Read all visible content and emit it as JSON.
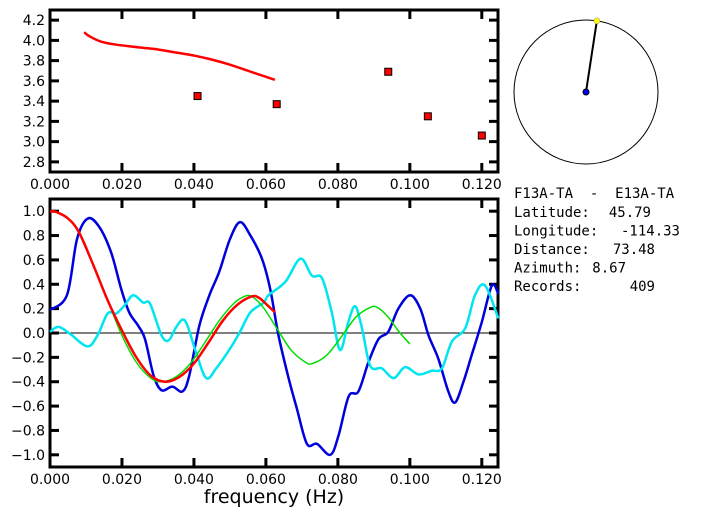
{
  "chart_data": [
    {
      "type": "scatter",
      "title": "",
      "xlabel": "",
      "ylabel": "",
      "xlim": [
        0,
        0.1245
      ],
      "ylim": [
        2.7,
        4.3
      ],
      "xticks": [
        "0.000",
        "0.020",
        "0.040",
        "0.060",
        "0.080",
        "0.100",
        "0.120"
      ],
      "yticks": [
        "2.8",
        "3.0",
        "3.2",
        "3.4",
        "3.6",
        "3.8",
        "4.0",
        "4.2"
      ],
      "series": [
        {
          "name": "curve",
          "color": "#ff0000",
          "style": "line",
          "x": [
            0.0095,
            0.011,
            0.014,
            0.018,
            0.025,
            0.03,
            0.035,
            0.04,
            0.045,
            0.05,
            0.055,
            0.06,
            0.0625
          ],
          "y": [
            4.08,
            4.04,
            3.99,
            3.96,
            3.93,
            3.91,
            3.88,
            3.85,
            3.81,
            3.76,
            3.7,
            3.64,
            3.61
          ]
        },
        {
          "name": "measurements",
          "color": "#ff0000",
          "style": "square",
          "x": [
            0.041,
            0.063,
            0.094,
            0.105,
            0.12
          ],
          "y": [
            3.45,
            3.37,
            3.69,
            3.25,
            3.06
          ]
        }
      ]
    },
    {
      "type": "line",
      "title": "",
      "xlabel": "frequency (Hz)",
      "ylabel": "",
      "xlim": [
        0,
        0.1245
      ],
      "ylim": [
        -1.1,
        1.1
      ],
      "xticks": [
        "0.000",
        "0.020",
        "0.040",
        "0.060",
        "0.080",
        "0.100",
        "0.120"
      ],
      "yticks": [
        "-1.0",
        "-0.8",
        "-0.6",
        "-0.4",
        "-0.2",
        "0.0",
        "0.2",
        "0.4",
        "0.6",
        "0.8",
        "1.0"
      ],
      "series": [
        {
          "name": "blue",
          "color": "#0000dd",
          "x": [
            0,
            0.0047,
            0.0075,
            0.0105,
            0.0137,
            0.017,
            0.0198,
            0.022,
            0.0245,
            0.0264,
            0.0288,
            0.031,
            0.034,
            0.0368,
            0.0387,
            0.0415,
            0.0443,
            0.047,
            0.05,
            0.0528,
            0.0557,
            0.0589,
            0.0612,
            0.0635,
            0.0663,
            0.0686,
            0.0714,
            0.0742,
            0.0779,
            0.0802,
            0.083,
            0.0857,
            0.0885,
            0.0913,
            0.094,
            0.0968,
            0.1001,
            0.1029,
            0.1052,
            0.1079,
            0.1107,
            0.1126,
            0.1149,
            0.1172,
            0.12,
            0.1228,
            0.1246
          ],
          "y": [
            0.19,
            0.31,
            0.77,
            0.94,
            0.87,
            0.66,
            0.36,
            0.17,
            0.06,
            -0.05,
            -0.35,
            -0.47,
            -0.44,
            -0.48,
            -0.35,
            0.06,
            0.31,
            0.5,
            0.77,
            0.91,
            0.8,
            0.61,
            0.36,
            -0.02,
            -0.37,
            -0.62,
            -0.91,
            -0.91,
            -1.0,
            -0.84,
            -0.52,
            -0.48,
            -0.24,
            -0.05,
            0.01,
            0.2,
            0.31,
            0.2,
            -0.02,
            -0.21,
            -0.48,
            -0.57,
            -0.4,
            -0.18,
            0.09,
            0.39,
            0.32
          ]
        },
        {
          "name": "cyan",
          "color": "#00e5f0",
          "x": [
            0,
            0.0024,
            0.0057,
            0.0104,
            0.0132,
            0.016,
            0.0184,
            0.0208,
            0.0231,
            0.0259,
            0.0278,
            0.031,
            0.033,
            0.0349,
            0.0368,
            0.0382,
            0.0406,
            0.0434,
            0.0462,
            0.05,
            0.0528,
            0.0557,
            0.0594,
            0.0607,
            0.0654,
            0.0696,
            0.0728,
            0.0756,
            0.0783,
            0.0806,
            0.0829,
            0.0848,
            0.0867,
            0.089,
            0.0922,
            0.0955,
            0.0987,
            0.1024,
            0.1061,
            0.1089,
            0.1117,
            0.1154,
            0.1181,
            0.1209,
            0.1246
          ],
          "y": [
            0.01,
            0.05,
            -0.01,
            -0.11,
            -0.02,
            0.16,
            0.16,
            0.23,
            0.31,
            0.25,
            0.24,
            -0.02,
            -0.06,
            0.04,
            0.11,
            0.06,
            -0.16,
            -0.37,
            -0.29,
            -0.13,
            0.01,
            0.17,
            0.25,
            0.31,
            0.42,
            0.61,
            0.47,
            0.45,
            0.17,
            -0.14,
            0.09,
            0.22,
            0.04,
            -0.27,
            -0.29,
            -0.37,
            -0.28,
            -0.34,
            -0.31,
            -0.29,
            -0.07,
            0.04,
            0.31,
            0.39,
            0.12
          ]
        },
        {
          "name": "green",
          "color": "#00dd00",
          "x": [
            0.0095,
            0.012,
            0.016,
            0.02,
            0.024,
            0.028,
            0.031,
            0.035,
            0.039,
            0.043,
            0.047,
            0.051,
            0.054,
            0.056,
            0.059,
            0.063,
            0.067,
            0.071,
            0.073,
            0.077,
            0.081,
            0.085,
            0.089,
            0.091,
            0.094,
            0.097,
            0.1
          ],
          "y": [
            0.75,
            0.56,
            0.27,
            -0.02,
            -0.24,
            -0.37,
            -0.4,
            -0.36,
            -0.25,
            -0.08,
            0.1,
            0.24,
            0.3,
            0.3,
            0.22,
            0.04,
            -0.14,
            -0.24,
            -0.25,
            -0.18,
            -0.03,
            0.13,
            0.21,
            0.21,
            0.13,
            0.01,
            -0.09
          ]
        },
        {
          "name": "red",
          "color": "#ff0000",
          "x": [
            0,
            0.002,
            0.005,
            0.008,
            0.012,
            0.016,
            0.02,
            0.024,
            0.028,
            0.032,
            0.036,
            0.04,
            0.044,
            0.048,
            0.052,
            0.056,
            0.058,
            0.06,
            0.0625
          ],
          "y": [
            1.0,
            0.99,
            0.94,
            0.83,
            0.56,
            0.27,
            0.02,
            -0.2,
            -0.35,
            -0.4,
            -0.36,
            -0.25,
            -0.08,
            0.1,
            0.23,
            0.3,
            0.29,
            0.24,
            0.17
          ]
        }
      ]
    }
  ],
  "station_info": {
    "pair": "F13A-TA  -  E13A-TA",
    "rows": [
      {
        "label": "Latitude:",
        "value": "45.79"
      },
      {
        "label": "Longitude:",
        "value": "-114.33"
      },
      {
        "label": "Distance:",
        "value": "73.48"
      },
      {
        "label": "Azimuth:",
        "value": "8.67"
      },
      {
        "label": "Records:",
        "value": "409"
      }
    ]
  },
  "azimuth_dial": {
    "azimuth_deg": 8.67,
    "center_color": "#0000ff",
    "end_color": "#ffff00"
  }
}
